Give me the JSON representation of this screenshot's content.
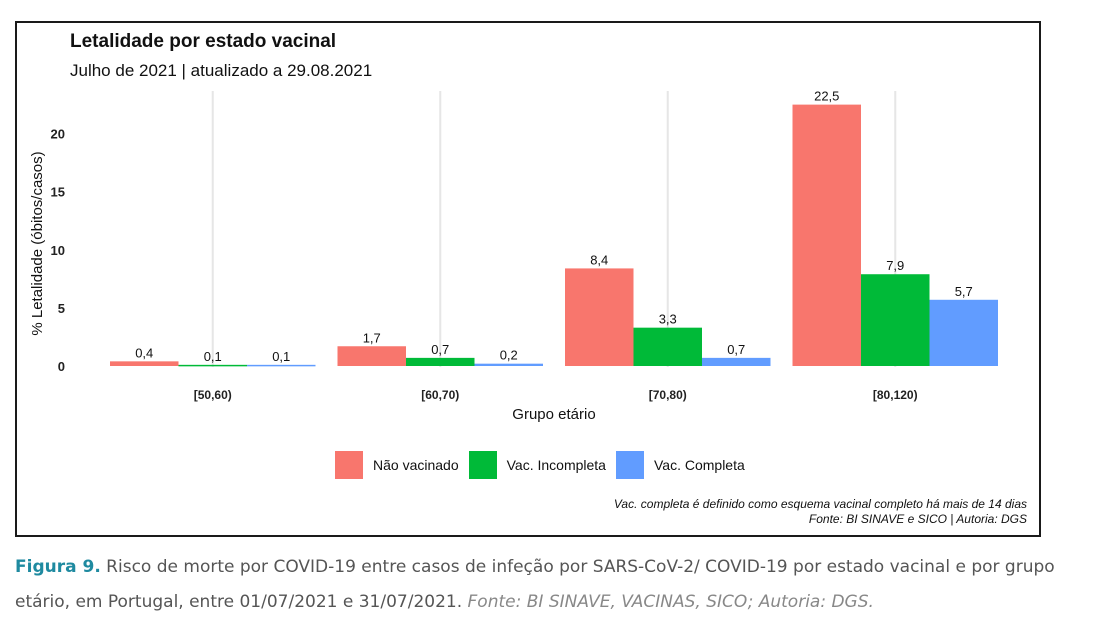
{
  "chart_data": {
    "type": "bar",
    "title": "Letalidade por estado vacinal",
    "subtitle": "Julho de 2021 | atualizado a 29.08.2021",
    "xlabel": "Grupo etário",
    "ylabel": "% Letalidade (óbitos/casos)",
    "categories": [
      "[50,60)",
      "[60,70)",
      "[70,80)",
      "[80,120)"
    ],
    "series": [
      {
        "name": "Não vacinado",
        "color": "#F8766D",
        "values": [
          0.4,
          1.7,
          8.4,
          22.5
        ],
        "labels": [
          "0,4",
          "1,7",
          "8,4",
          "22,5"
        ]
      },
      {
        "name": "Vac. Incompleta",
        "color": "#00BA38",
        "values": [
          0.1,
          0.7,
          3.3,
          7.9
        ],
        "labels": [
          "0,1",
          "0,7",
          "3,3",
          "7,9"
        ]
      },
      {
        "name": "Vac. Completa",
        "color": "#619CFF",
        "values": [
          0.1,
          0.2,
          0.7,
          5.7
        ],
        "labels": [
          "0,1",
          "0,2",
          "0,7",
          "5,7"
        ]
      }
    ],
    "yticks": [
      0,
      5,
      10,
      15,
      20
    ],
    "ylim": [
      0,
      23.5
    ],
    "grid": true,
    "legend_position": "bottom",
    "note_lines": [
      "Vac. completa é definido como esquema vacinal completo há mais de 14 dias",
      "Fonte: BI SINAVE e SICO | Autoria: DGS"
    ]
  },
  "caption": {
    "figure_label": "Figura 9.",
    "text": " Risco de morte por COVID-19 entre casos de infeção por SARS-CoV-2/ COVID-19 por estado vacinal e por grupo etário, em Portugal, entre 01/07/2021 e 31/07/2021. ",
    "source": "Fonte: BI SINAVE, VACINAS, SICO; Autoria: DGS."
  }
}
